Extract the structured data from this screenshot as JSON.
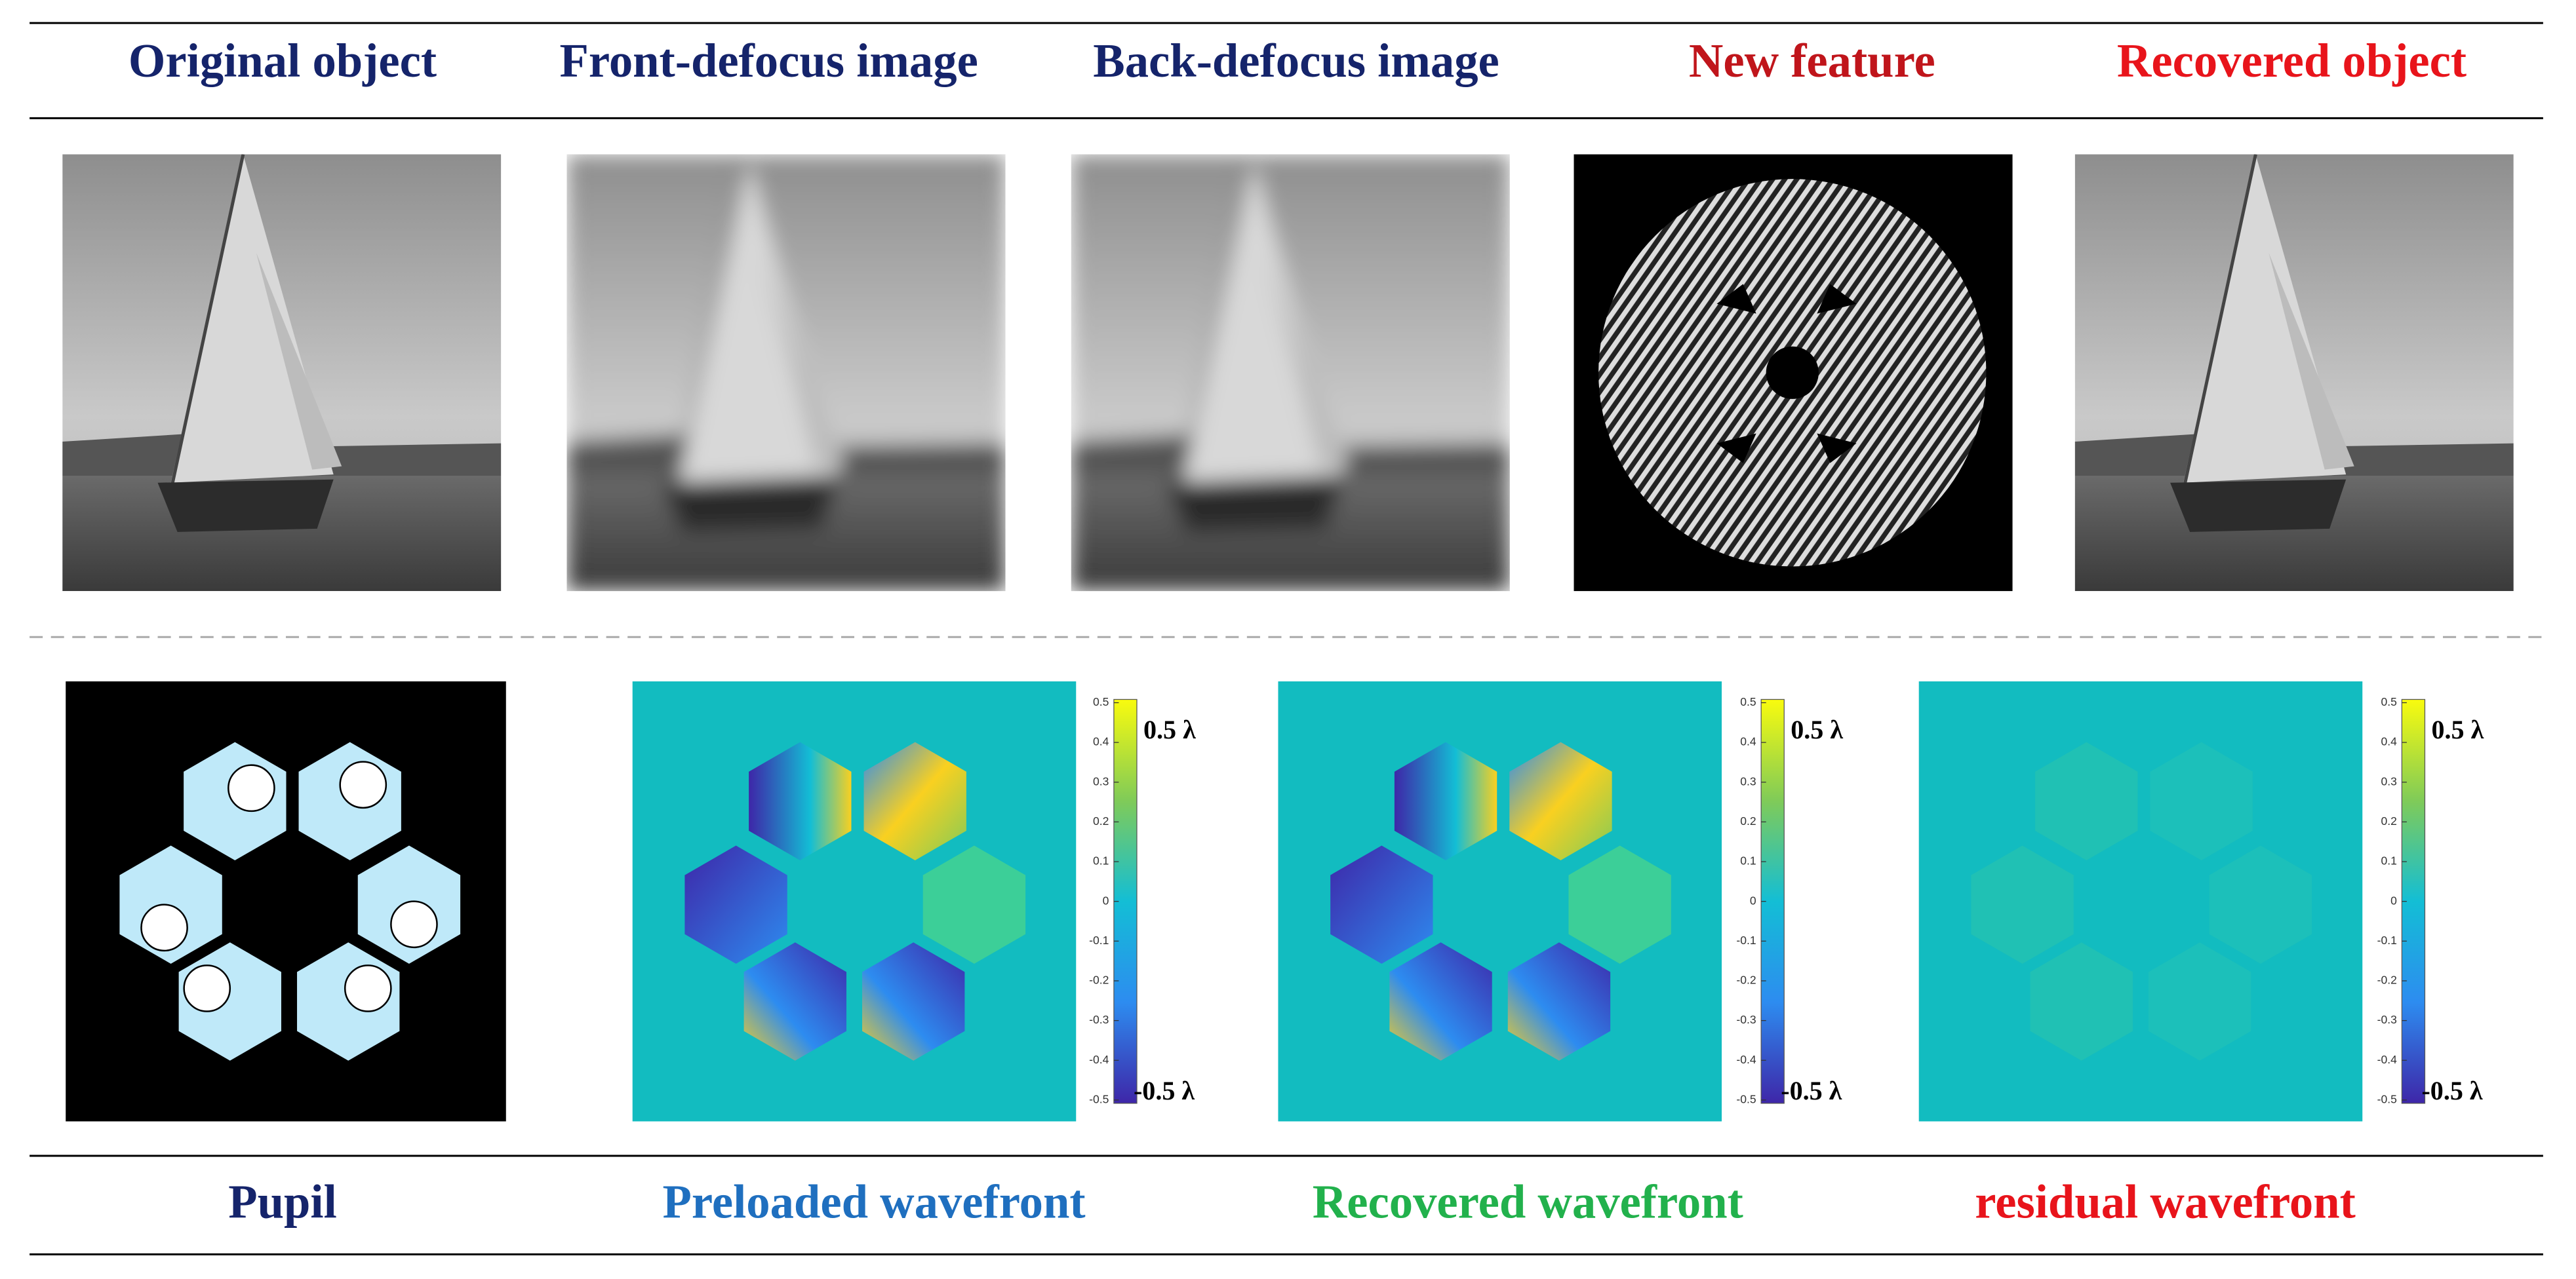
{
  "top_labels": [
    "Original object",
    "Front-defocus image",
    "Back-defocus image",
    "New feature",
    "Recovered object"
  ],
  "bottom_labels": [
    "Pupil",
    "Preloaded wavefront",
    "Recovered wavefront",
    "residual wavefront"
  ],
  "colorbars": [
    {
      "ticks": [
        0.5,
        0.4,
        0.3,
        0.2,
        0.1,
        0,
        -0.1,
        -0.2,
        -0.3,
        -0.4,
        -0.5
      ],
      "max_label": "0.5 λ",
      "min_label": "-0.5 λ"
    },
    {
      "ticks": [
        0.5,
        0.4,
        0.3,
        0.2,
        0.1,
        0,
        -0.1,
        -0.2,
        -0.3,
        -0.4,
        -0.5
      ],
      "max_label": "0.5 λ",
      "min_label": "-0.5 λ"
    },
    {
      "ticks": [
        0.5,
        0.4,
        0.3,
        0.2,
        0.1,
        0,
        -0.1,
        -0.2,
        -0.3,
        -0.4,
        -0.5
      ],
      "max_label": "0.5 λ",
      "min_label": "-0.5 λ"
    }
  ]
}
